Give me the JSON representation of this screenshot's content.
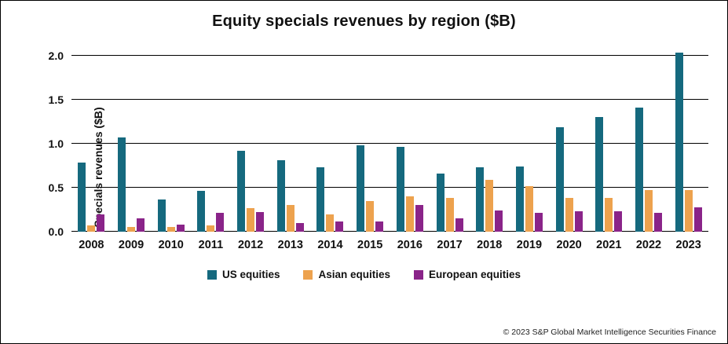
{
  "title": "Equity specials revenues by region ($B)",
  "footer": "© 2023 S&P Global Market Intelligence Securities Finance",
  "chart_data": {
    "type": "bar",
    "title": "Equity specials revenues by region ($B)",
    "xlabel": "",
    "ylabel": "Specials revenues ($B)",
    "ylim": [
      0,
      2.0
    ],
    "yticks": [
      0.0,
      0.5,
      1.0,
      1.5,
      2.0
    ],
    "grid": true,
    "legend_position": "bottom",
    "categories": [
      "2008",
      "2009",
      "2010",
      "2011",
      "2012",
      "2013",
      "2014",
      "2015",
      "2016",
      "2017",
      "2018",
      "2019",
      "2020",
      "2021",
      "2022",
      "2023"
    ],
    "series": [
      {
        "name": "US equities",
        "color": "#15697E",
        "values": [
          0.79,
          1.07,
          0.37,
          0.46,
          0.92,
          0.81,
          0.73,
          0.98,
          0.96,
          0.66,
          0.73,
          0.74,
          1.19,
          1.3,
          1.41,
          2.04
        ]
      },
      {
        "name": "Asian equities",
        "color": "#EDA24E",
        "values": [
          0.07,
          0.05,
          0.05,
          0.07,
          0.27,
          0.3,
          0.2,
          0.35,
          0.4,
          0.38,
          0.59,
          0.52,
          0.38,
          0.38,
          0.47,
          0.47
        ]
      },
      {
        "name": "European equities",
        "color": "#8A2489",
        "values": [
          0.2,
          0.15,
          0.08,
          0.21,
          0.22,
          0.1,
          0.12,
          0.12,
          0.3,
          0.15,
          0.24,
          0.21,
          0.23,
          0.23,
          0.21,
          0.28
        ]
      }
    ]
  }
}
